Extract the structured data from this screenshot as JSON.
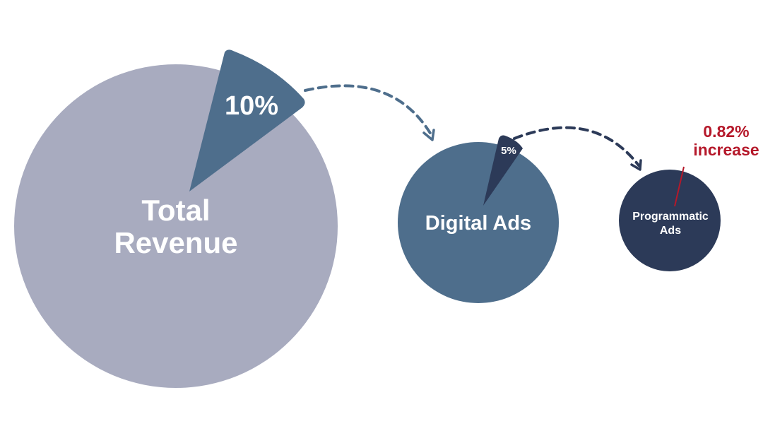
{
  "colors": {
    "total": "#a8abbf",
    "digital": "#4e6e8c",
    "programmatic": "#2c3a58",
    "arrow1": "#4e6e8c",
    "arrow2": "#2c3a58",
    "callout": "#b5182a",
    "text": "#ffffff"
  },
  "total": {
    "label_line1": "Total",
    "label_line2": "Revenue",
    "share_label": "10%"
  },
  "digital": {
    "label": "Digital Ads",
    "share_label": "5%"
  },
  "programmatic": {
    "label_line1": "Programmatic",
    "label_line2": "Ads"
  },
  "callout": {
    "value": "0.82%",
    "text": "increase"
  }
}
